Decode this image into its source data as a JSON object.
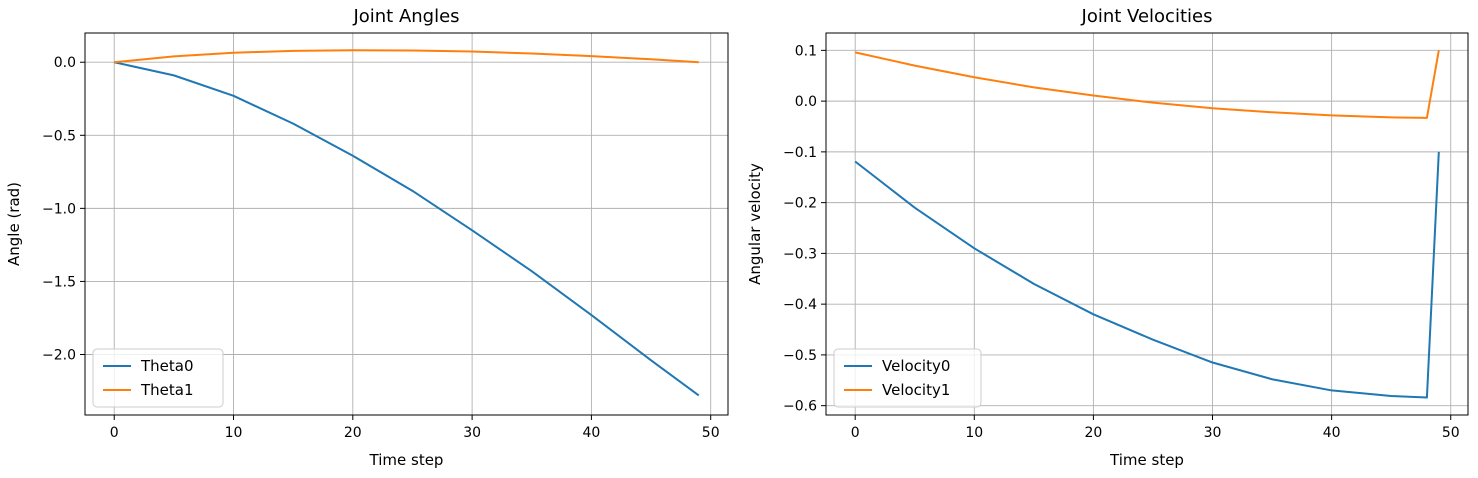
{
  "chart_data": [
    {
      "type": "line",
      "title": "Joint Angles",
      "xlabel": "Time step",
      "ylabel": "Angle (rad)",
      "xlim": [
        -2.45,
        51.45
      ],
      "ylim": [
        -2.414,
        0.2
      ],
      "xticks": [
        0,
        10,
        20,
        30,
        40,
        50
      ],
      "yticks": [
        0.0,
        -0.5,
        -1.0,
        -1.5,
        -2.0
      ],
      "ytick_labels": [
        "0.0",
        "−0.5",
        "−1.0",
        "−1.5",
        "−2.0"
      ],
      "grid": true,
      "legend_position": "lower-left",
      "series": [
        {
          "name": "Theta0",
          "color": "#1f77b4",
          "x": [
            0,
            5,
            10,
            15,
            20,
            25,
            30,
            35,
            40,
            45,
            49
          ],
          "y": [
            0.0,
            -0.09,
            -0.23,
            -0.42,
            -0.64,
            -0.88,
            -1.15,
            -1.43,
            -1.73,
            -2.04,
            -2.28
          ]
        },
        {
          "name": "Theta1",
          "color": "#ff7f0e",
          "x": [
            0,
            5,
            10,
            15,
            20,
            25,
            30,
            35,
            40,
            45,
            49
          ],
          "y": [
            0.0,
            0.04,
            0.065,
            0.078,
            0.082,
            0.08,
            0.073,
            0.06,
            0.042,
            0.02,
            0.0
          ]
        }
      ]
    },
    {
      "type": "line",
      "title": "Joint Velocities",
      "xlabel": "Time step",
      "ylabel": "Angular velocity",
      "xlim": [
        -2.45,
        51.45
      ],
      "ylim": [
        -0.6184,
        0.1342
      ],
      "xticks": [
        0,
        10,
        20,
        30,
        40,
        50
      ],
      "yticks": [
        0.1,
        0.0,
        -0.1,
        -0.2,
        -0.3,
        -0.4,
        -0.5,
        -0.6
      ],
      "ytick_labels": [
        "0.1",
        "0.0",
        "−0.1",
        "−0.2",
        "−0.3",
        "−0.4",
        "−0.5",
        "−0.6"
      ],
      "grid": true,
      "legend_position": "lower-left",
      "series": [
        {
          "name": "Velocity0",
          "color": "#1f77b4",
          "x": [
            0,
            5,
            10,
            15,
            20,
            25,
            30,
            35,
            40,
            45,
            48,
            49
          ],
          "y": [
            -0.119,
            -0.21,
            -0.29,
            -0.36,
            -0.42,
            -0.47,
            -0.515,
            -0.548,
            -0.57,
            -0.581,
            -0.584,
            -0.1
          ]
        },
        {
          "name": "Velocity1",
          "color": "#ff7f0e",
          "x": [
            0,
            5,
            10,
            15,
            20,
            25,
            30,
            35,
            40,
            45,
            48,
            49
          ],
          "y": [
            0.096,
            0.07,
            0.047,
            0.027,
            0.011,
            -0.003,
            -0.014,
            -0.022,
            -0.028,
            -0.032,
            -0.033,
            0.1
          ]
        }
      ]
    }
  ]
}
